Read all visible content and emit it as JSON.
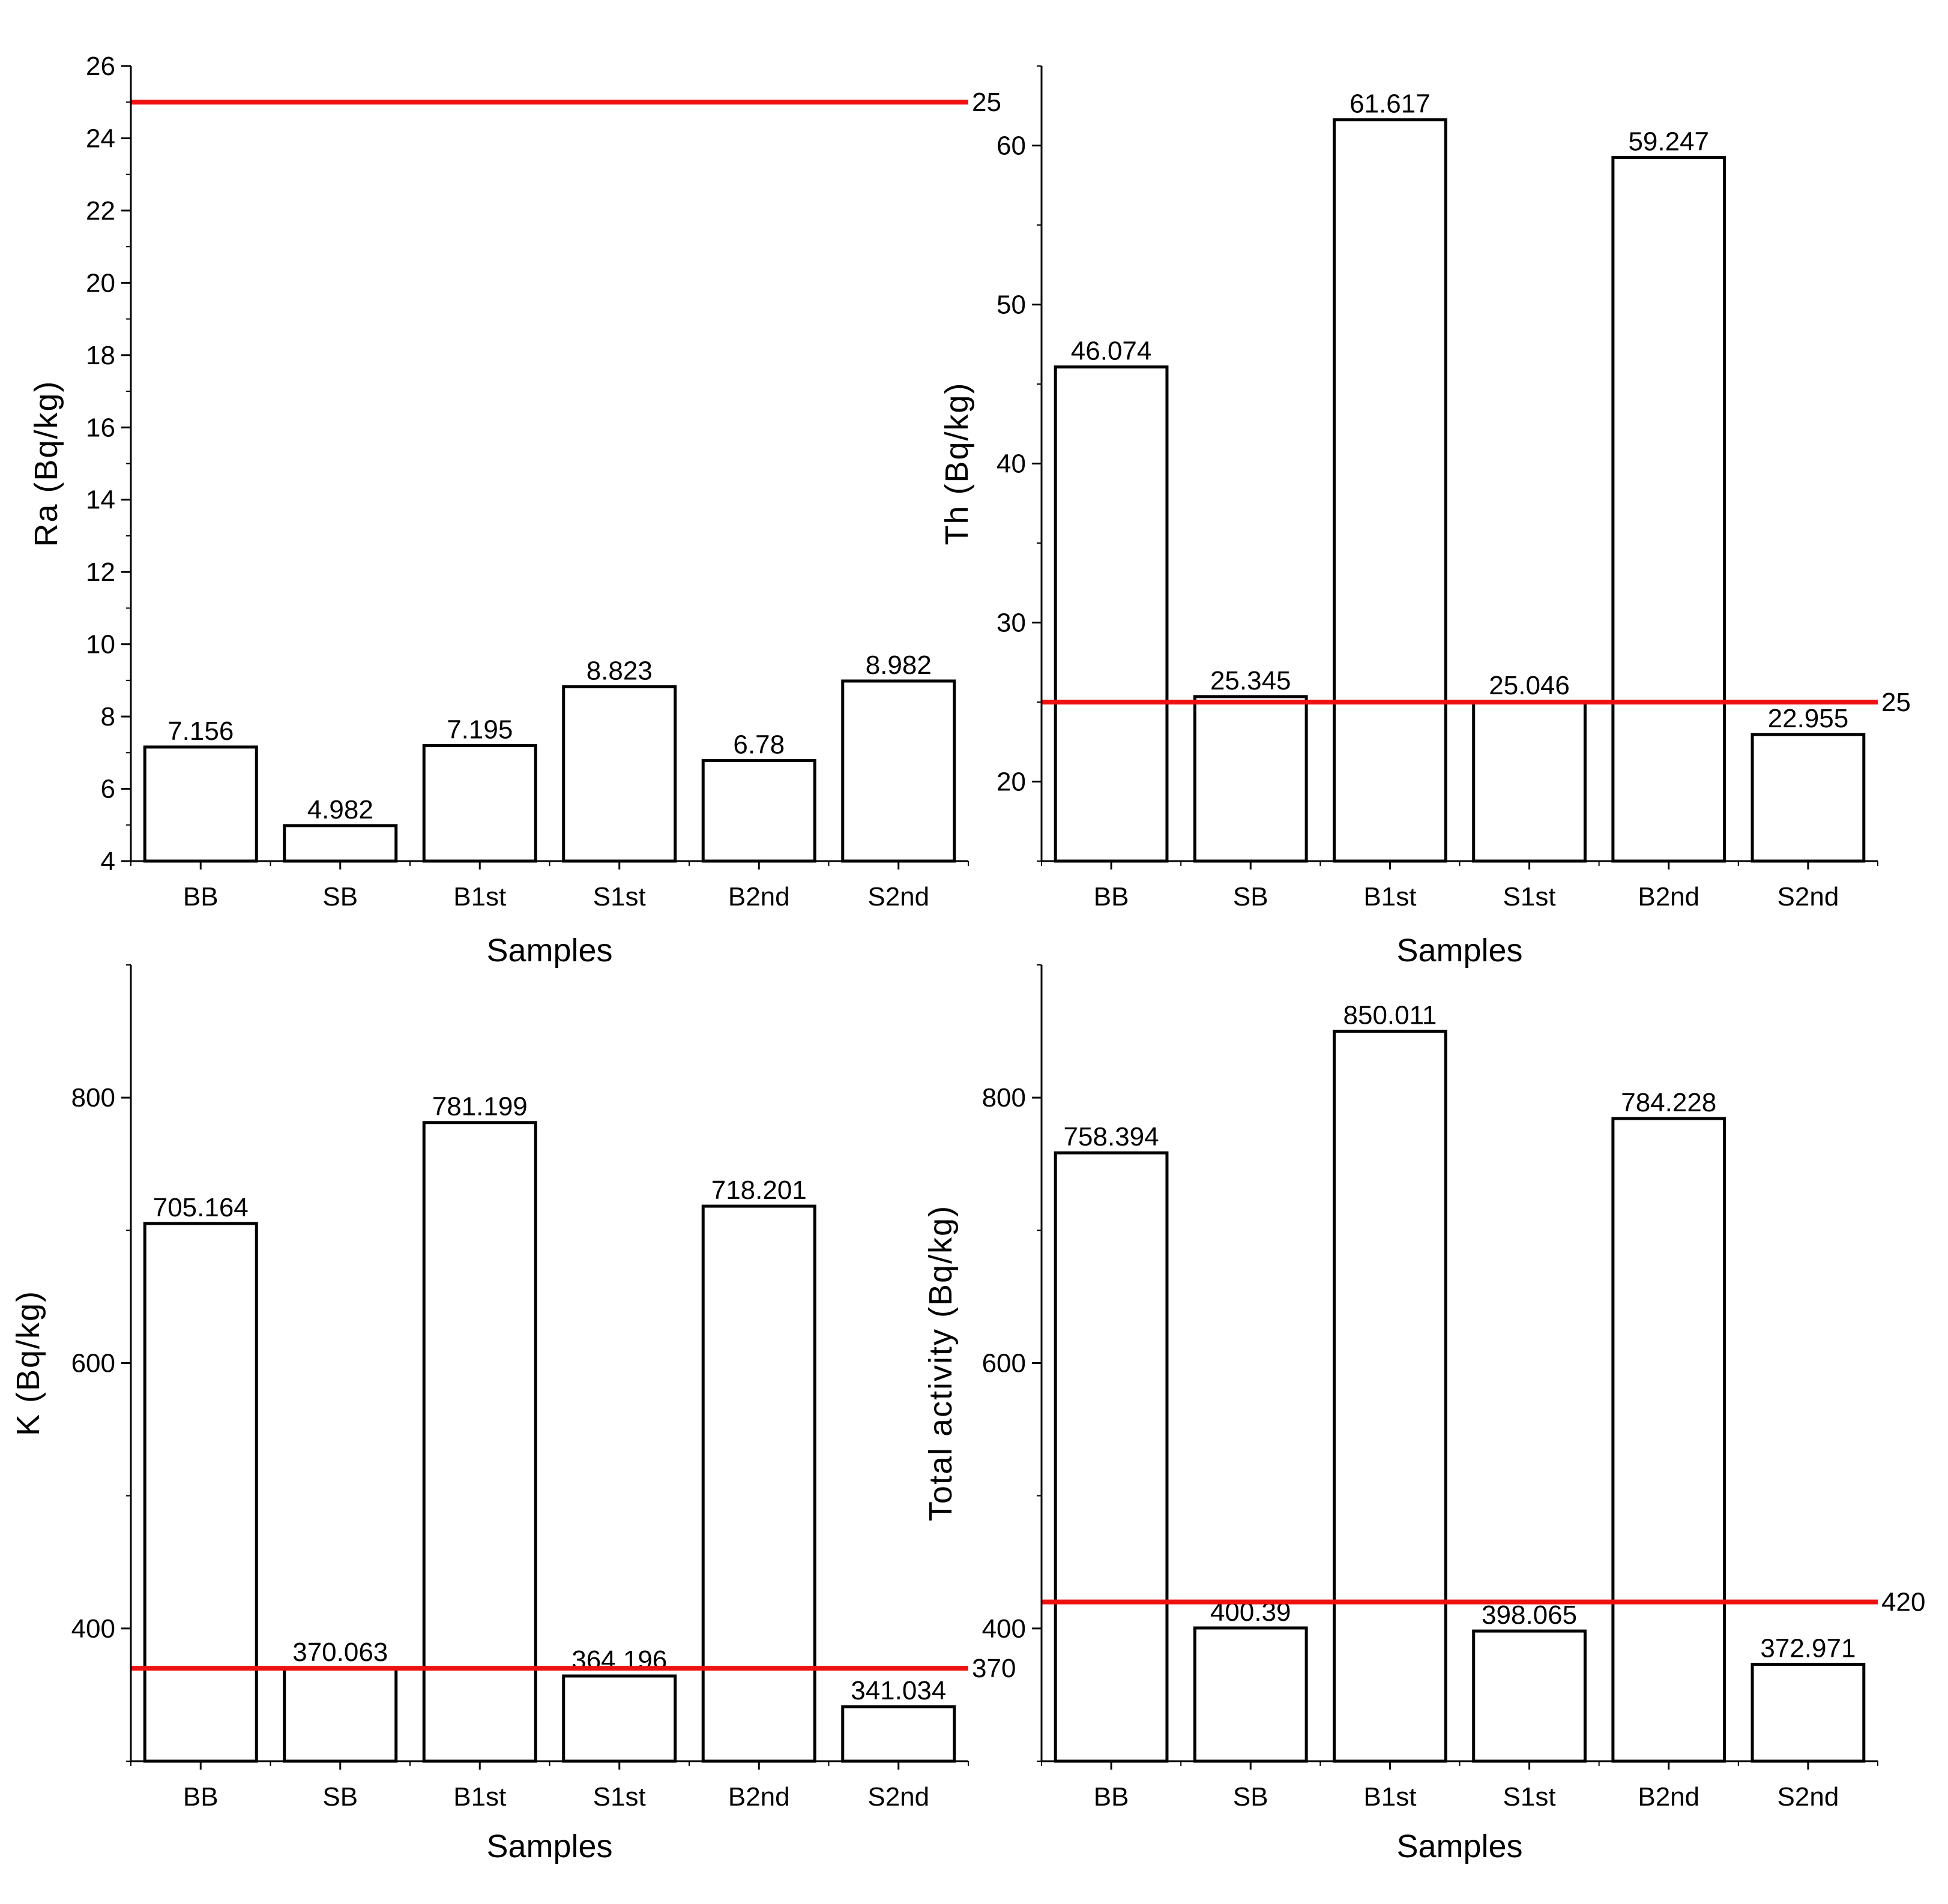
{
  "chart_data": [
    {
      "type": "bar",
      "title": "",
      "xlabel": "Samples",
      "ylabel": "Ra (Bq/kg)",
      "categories": [
        "BB",
        "SB",
        "B1st",
        "S1st",
        "B2nd",
        "S2nd"
      ],
      "values": [
        7.156,
        4.982,
        7.195,
        8.823,
        6.78,
        8.982
      ],
      "value_labels": [
        "7.156",
        "4.982",
        "7.195",
        "8.823",
        "6.78",
        "8.982"
      ],
      "ylim": [
        4,
        26
      ],
      "yticks": [
        4,
        6,
        8,
        10,
        12,
        14,
        16,
        18,
        20,
        22,
        24,
        26
      ],
      "ytick_labels": [
        "4",
        "6",
        "8",
        "10",
        "12",
        "14",
        "16",
        "18",
        "20",
        "22",
        "24",
        "26"
      ],
      "minor_step": 1,
      "reference_line": {
        "value": 25,
        "label": "25",
        "color": "#ee1111"
      }
    },
    {
      "type": "bar",
      "title": "",
      "xlabel": "Samples",
      "ylabel": "Th (Bq/kg)",
      "categories": [
        "BB",
        "SB",
        "B1st",
        "S1st",
        "B2nd",
        "S2nd"
      ],
      "values": [
        46.074,
        25.345,
        61.617,
        25.046,
        59.247,
        22.955
      ],
      "value_labels": [
        "46.074",
        "25.345",
        "61.617",
        "25.046",
        "59.247",
        "22.955"
      ],
      "ylim": [
        15,
        65
      ],
      "yticks": [
        20,
        30,
        40,
        50,
        60
      ],
      "ytick_labels": [
        "20",
        "30",
        "40",
        "50",
        "60"
      ],
      "minor_step": 5,
      "reference_line": {
        "value": 25,
        "label": "25",
        "color": "#ee1111"
      }
    },
    {
      "type": "bar",
      "title": "",
      "xlabel": "Samples",
      "ylabel": "K (Bq/kg)",
      "categories": [
        "BB",
        "SB",
        "B1st",
        "S1st",
        "B2nd",
        "S2nd"
      ],
      "values": [
        705.164,
        370.063,
        781.199,
        364.196,
        718.201,
        341.034
      ],
      "value_labels": [
        "705.164",
        "370.063",
        "781.199",
        "364.196",
        "718.201",
        "341.034"
      ],
      "ylim": [
        300,
        900
      ],
      "yticks": [
        400,
        600,
        800
      ],
      "ytick_labels": [
        "400",
        "600",
        "800"
      ],
      "minor_step": 100,
      "reference_line": {
        "value": 370,
        "label": "370",
        "color": "#ee1111"
      }
    },
    {
      "type": "bar",
      "title": "",
      "xlabel": "Samples",
      "ylabel": "Total activity (Bq/kg)",
      "categories": [
        "BB",
        "SB",
        "B1st",
        "S1st",
        "B2nd",
        "S2nd"
      ],
      "values": [
        758.394,
        400.39,
        850.011,
        398.065,
        784.228,
        372.971
      ],
      "value_labels": [
        "758.394",
        "400.39",
        "850.011",
        "398.065",
        "784.228",
        "372.971"
      ],
      "ylim": [
        300,
        900
      ],
      "yticks": [
        400,
        600,
        800
      ],
      "ytick_labels": [
        "400",
        "600",
        "800"
      ],
      "minor_step": 100,
      "reference_line": {
        "value": 420,
        "label": "420",
        "color": "#ee1111"
      }
    }
  ]
}
